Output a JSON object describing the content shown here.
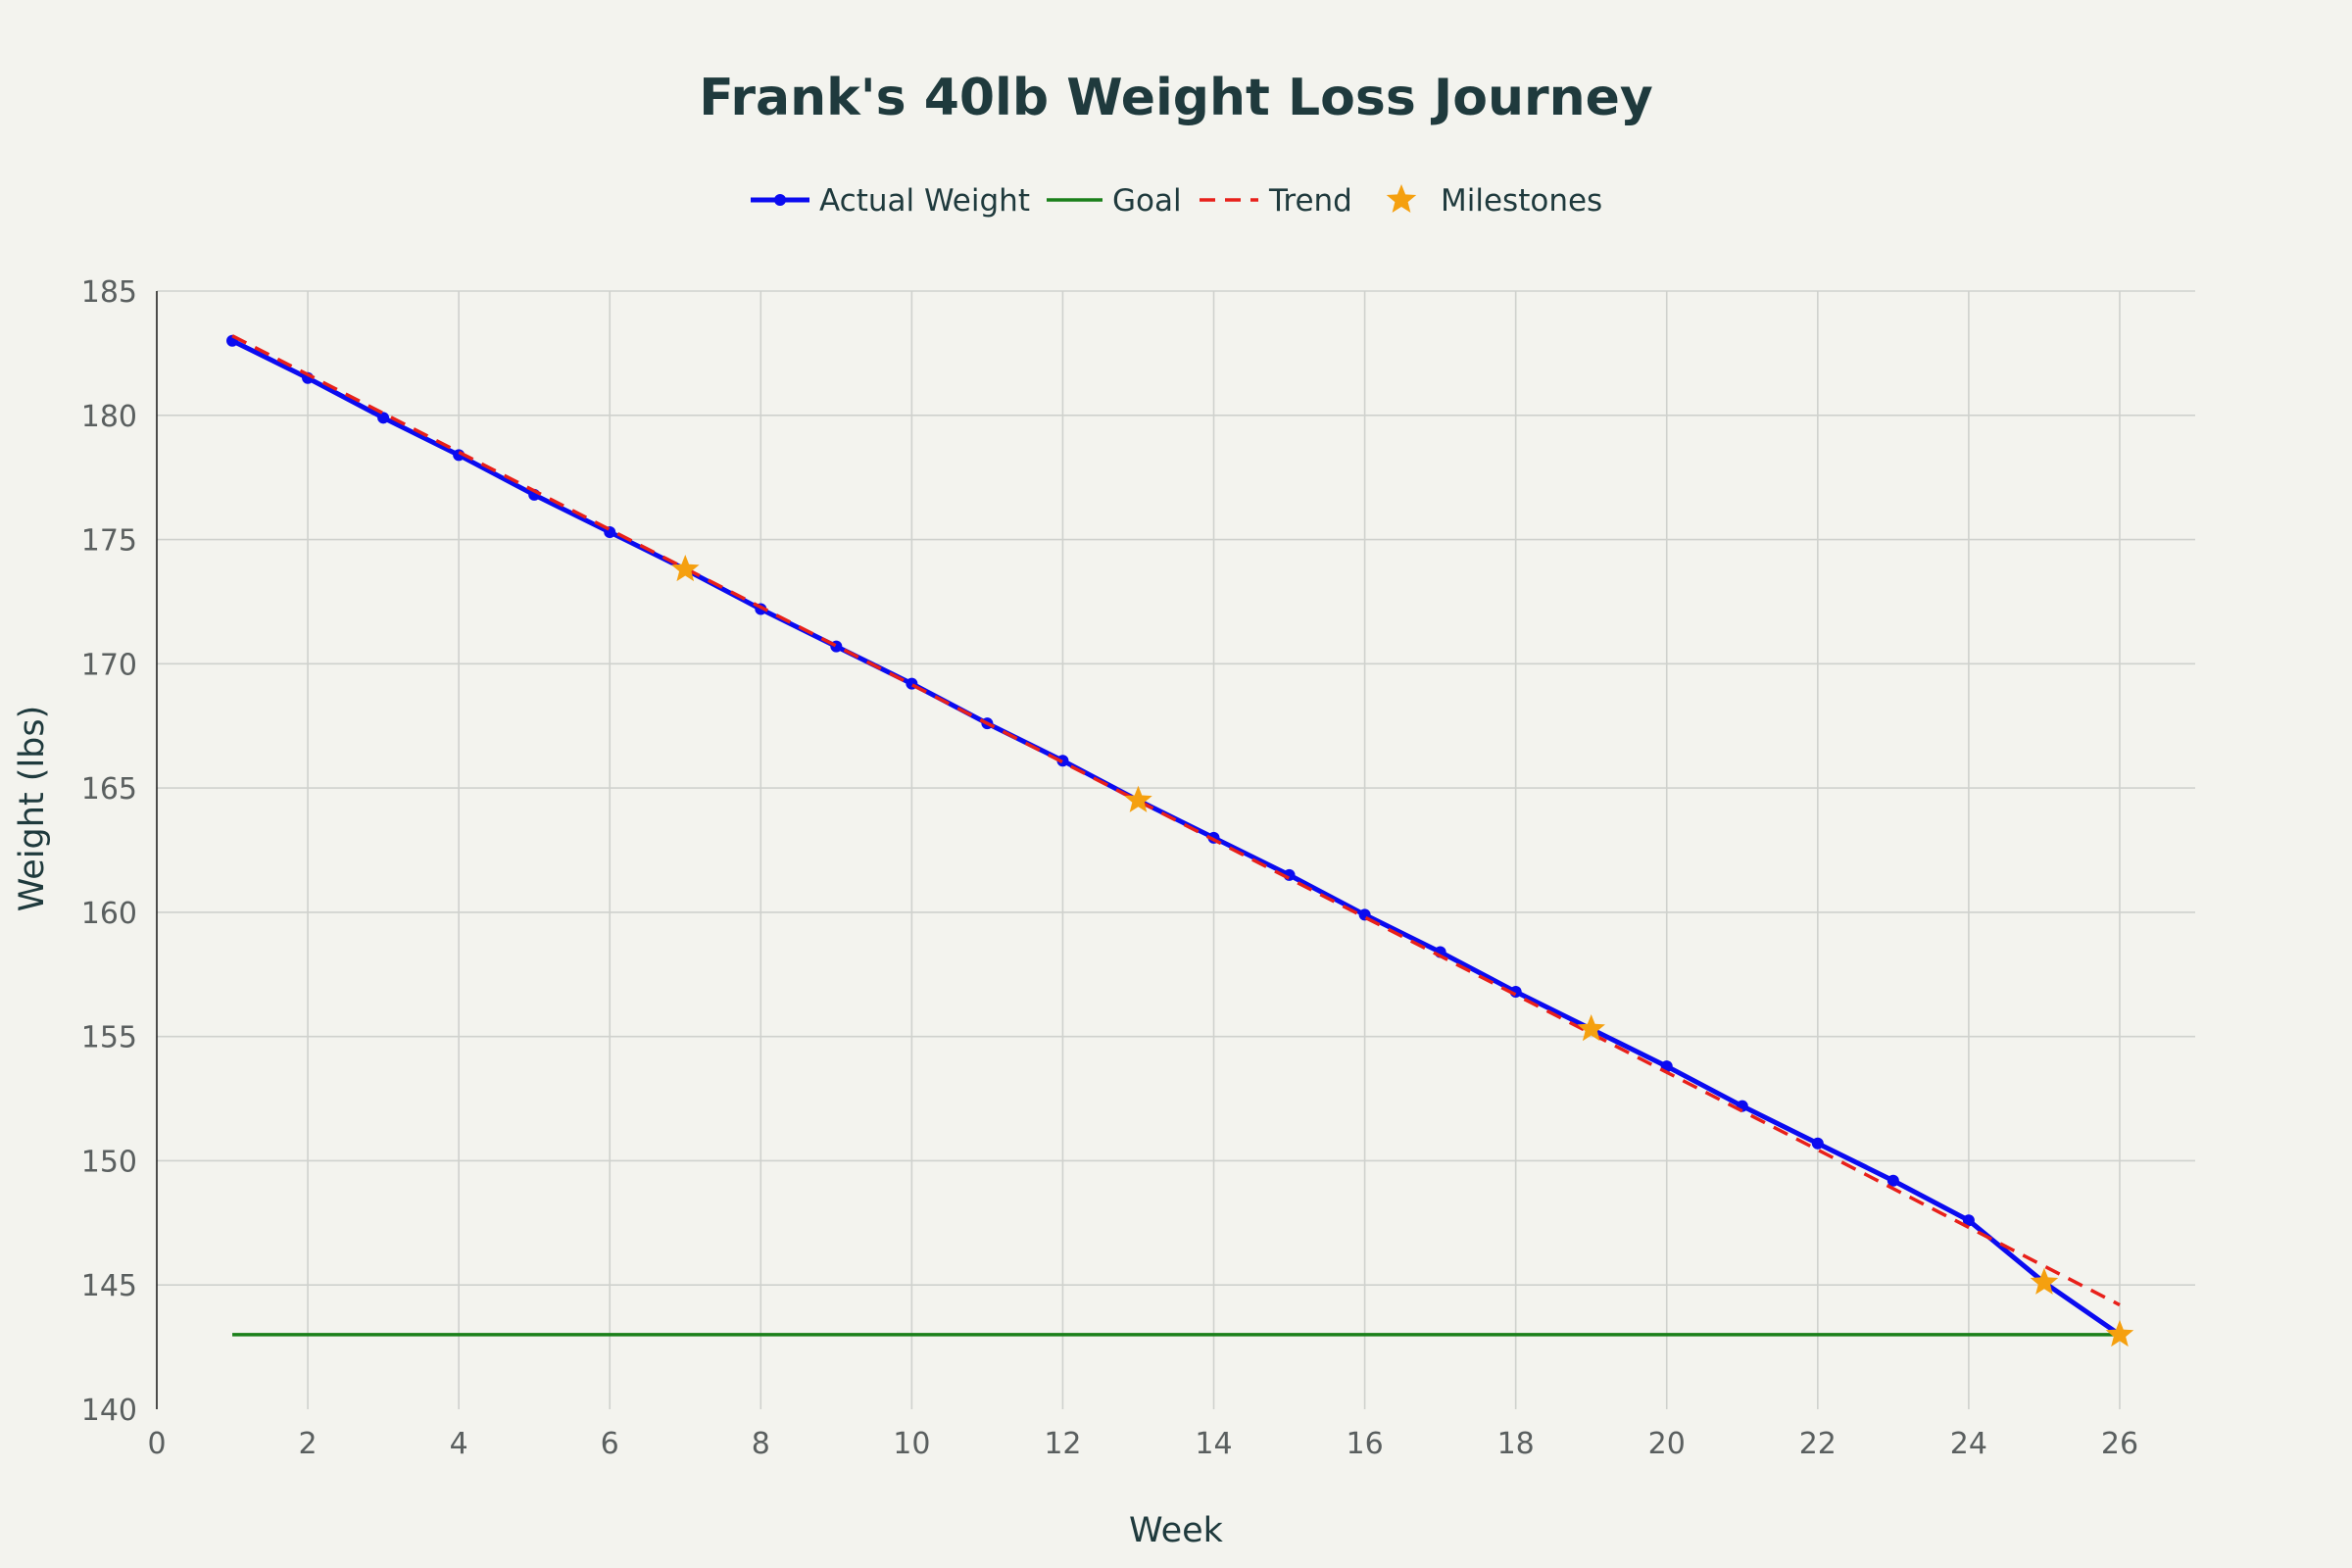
{
  "chart_data": {
    "type": "line",
    "title": "Frank's 40lb Weight Loss Journey",
    "xlabel": "Week",
    "ylabel": "Weight (lbs)",
    "xlim": [
      0,
      27
    ],
    "ylim": [
      140,
      185
    ],
    "x_ticks": [
      0,
      2,
      4,
      6,
      8,
      10,
      12,
      14,
      16,
      18,
      20,
      22,
      24,
      26
    ],
    "y_ticks": [
      140,
      145,
      150,
      155,
      160,
      165,
      170,
      175,
      180,
      185
    ],
    "grid": true,
    "legend_position": "top-center",
    "series": [
      {
        "name": "Actual Weight",
        "kind": "line+markers",
        "color": "#0b0bf0",
        "x": [
          1,
          2,
          3,
          4,
          5,
          6,
          7,
          8,
          9,
          10,
          11,
          12,
          13,
          14,
          15,
          16,
          17,
          18,
          19,
          20,
          21,
          22,
          23,
          24,
          25,
          26
        ],
        "y": [
          183,
          181.5,
          179.9,
          178.4,
          176.8,
          175.3,
          173.8,
          172.2,
          170.7,
          169.2,
          167.6,
          166.1,
          164.5,
          163,
          161.5,
          159.9,
          158.4,
          156.8,
          155.3,
          153.8,
          152.2,
          150.7,
          149.2,
          147.6,
          145.1,
          143
        ]
      },
      {
        "name": "Goal",
        "kind": "line",
        "color": "#1a7f1a",
        "x": [
          1,
          26
        ],
        "y": [
          143,
          143
        ]
      },
      {
        "name": "Trend",
        "kind": "dashed-line",
        "color": "#e8201a",
        "x": [
          1,
          26
        ],
        "y": [
          183.2,
          144.2
        ]
      },
      {
        "name": "Milestones",
        "kind": "star-markers",
        "color": "#f5a00f",
        "x": [
          7,
          13,
          19,
          25,
          26
        ],
        "y": [
          173.8,
          164.5,
          155.3,
          145.1,
          143
        ]
      }
    ]
  }
}
